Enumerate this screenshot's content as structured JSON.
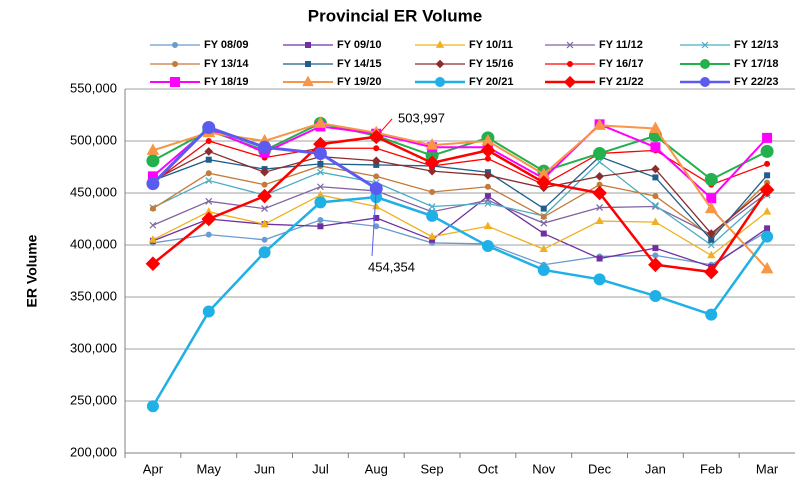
{
  "chart_data": {
    "type": "line",
    "title": "Provincial ER Volume",
    "y_label": "ER Volume",
    "categories": [
      "Apr",
      "May",
      "Jun",
      "Jul",
      "Aug",
      "Sep",
      "Oct",
      "Nov",
      "Dec",
      "Jan",
      "Feb",
      "Mar"
    ],
    "ylim": [
      200000,
      550000
    ],
    "yticks": [
      {
        "value": 200000,
        "label": "200,000"
      },
      {
        "value": 250000,
        "label": "250,000"
      },
      {
        "value": 300000,
        "label": "300,000"
      },
      {
        "value": 350000,
        "label": "350,000"
      },
      {
        "value": 400000,
        "label": "400,000"
      },
      {
        "value": 450000,
        "label": "450,000"
      },
      {
        "value": 500000,
        "label": "500,000"
      },
      {
        "value": 550000,
        "label": "550,000"
      }
    ],
    "grid": true,
    "series": [
      {
        "name": "FY 08/09",
        "color": "#6a9bd1",
        "marker": "circle",
        "marker_size": 2.5,
        "line_width": 1.3,
        "values": [
          402000,
          410000,
          405000,
          424000,
          418000,
          402000,
          401000,
          381000,
          389000,
          390000,
          381000,
          413000
        ]
      },
      {
        "name": "FY 09/10",
        "color": "#7030a0",
        "marker": "square",
        "marker_size": 2.5,
        "line_width": 1.3,
        "values": [
          404000,
          425000,
          420000,
          418000,
          426000,
          405000,
          447000,
          411000,
          387000,
          397000,
          379000,
          416000
        ]
      },
      {
        "name": "FY 10/11",
        "color": "#f0b020",
        "marker": "triangle",
        "marker_size": 3,
        "line_width": 1.3,
        "values": [
          405000,
          432000,
          420000,
          448000,
          437000,
          408000,
          418000,
          396000,
          423000,
          422000,
          390000,
          432000
        ]
      },
      {
        "name": "FY 11/12",
        "color": "#8064a2",
        "marker": "x",
        "marker_size": 3,
        "line_width": 1.3,
        "values": [
          419000,
          442000,
          435000,
          456000,
          452000,
          432000,
          443000,
          421000,
          436000,
          437000,
          410000,
          450000
        ]
      },
      {
        "name": "FY 12/13",
        "color": "#4bacc6",
        "marker": "x",
        "marker_size": 3,
        "line_width": 1.3,
        "values": [
          436000,
          462000,
          448000,
          470000,
          460000,
          437000,
          440000,
          428000,
          480000,
          438000,
          400000,
          448000
        ]
      },
      {
        "name": "FY 13/14",
        "color": "#c47a3a",
        "marker": "circle",
        "marker_size": 2.5,
        "line_width": 1.3,
        "values": [
          435000,
          469000,
          458000,
          476000,
          466000,
          451000,
          456000,
          427000,
          458000,
          447000,
          408000,
          460000
        ]
      },
      {
        "name": "FY 14/15",
        "color": "#1f5f8b",
        "marker": "square",
        "marker_size": 2.5,
        "line_width": 1.3,
        "values": [
          462000,
          482000,
          473000,
          478000,
          477000,
          476000,
          470000,
          435000,
          485000,
          465000,
          405000,
          467000
        ]
      },
      {
        "name": "FY 15/16",
        "color": "#8b2d2d",
        "marker": "diamond",
        "marker_size": 3,
        "line_width": 1.3,
        "values": [
          462000,
          490000,
          470000,
          485000,
          481000,
          471000,
          467000,
          455000,
          466000,
          473000,
          411000,
          455000
        ]
      },
      {
        "name": "FY 16/17",
        "color": "#ff0000",
        "marker": "circle",
        "marker_size": 2.5,
        "line_width": 1.3,
        "values": [
          460000,
          500000,
          484000,
          493000,
          493000,
          476000,
          483000,
          458000,
          488000,
          491000,
          458000,
          478000
        ]
      },
      {
        "name": "FY 17/18",
        "color": "#22b14c",
        "marker": "circle",
        "marker_size": 6,
        "line_width": 2,
        "values": [
          481000,
          510000,
          491000,
          517000,
          505000,
          486000,
          503000,
          471000,
          488000,
          505000,
          463000,
          490000
        ]
      },
      {
        "name": "FY 18/19",
        "color": "#ff00ff",
        "marker": "square",
        "marker_size": 4.5,
        "line_width": 2,
        "values": [
          466000,
          512000,
          489000,
          514000,
          507000,
          494000,
          494000,
          464000,
          516000,
          494000,
          445000,
          503000
        ]
      },
      {
        "name": "FY 19/20",
        "color": "#f79646",
        "marker": "triangle",
        "marker_size": 5,
        "line_width": 2,
        "values": [
          491000,
          508000,
          500000,
          517000,
          508000,
          496000,
          500000,
          468000,
          515000,
          512000,
          435000,
          377000
        ]
      },
      {
        "name": "FY 20/21",
        "color": "#1fb0e6",
        "marker": "circle",
        "marker_size": 5.5,
        "line_width": 2.5,
        "values": [
          245000,
          336000,
          393000,
          441000,
          446000,
          428000,
          399000,
          376000,
          367000,
          351000,
          333000,
          408000
        ]
      },
      {
        "name": "FY 21/22",
        "color": "#ff0000",
        "marker": "diamond",
        "marker_size": 5.5,
        "line_width": 2.5,
        "values": [
          382000,
          425000,
          447000,
          497000,
          503997,
          479000,
          491000,
          460000,
          450000,
          381000,
          374000,
          453000
        ]
      },
      {
        "name": "FY 22/23",
        "color": "#5b5bf0",
        "marker": "circle",
        "marker_size": 6,
        "line_width": 3,
        "values": [
          459000,
          513000,
          494000,
          488000,
          454354,
          null,
          null,
          null,
          null,
          null,
          null,
          null
        ]
      }
    ],
    "annotations": [
      {
        "label": "503,997",
        "value": 503997,
        "series": 13,
        "category": 4
      },
      {
        "label": "454,354",
        "value": 454354,
        "series": 14,
        "category": 4
      }
    ]
  }
}
